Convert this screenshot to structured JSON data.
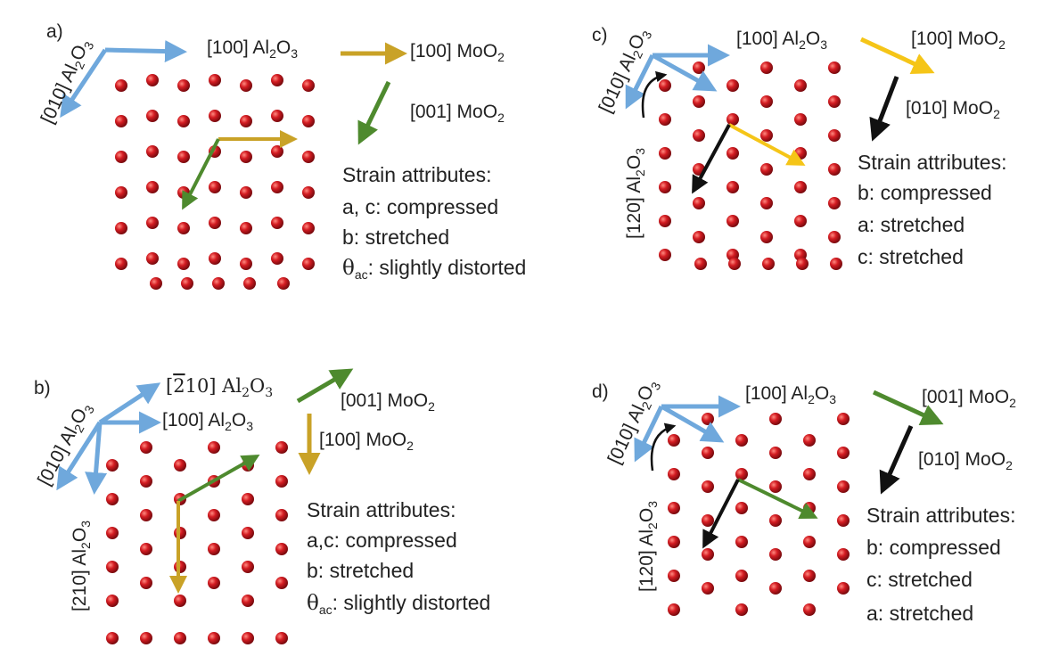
{
  "colors": {
    "al2o3_arrow": "#6fa8dc",
    "moo2_a_arrow": "#c9a227",
    "moo2_c_yellow": "#f5c518",
    "moo2_green": "#4e8a2e",
    "black_arrow": "#111111",
    "atom": "#c8161d"
  },
  "panels": [
    {
      "id": "a",
      "letter": "a)",
      "al_010": "[010] Al2O3",
      "al_100": "[100] Al2O3",
      "moo2_1": "[100] MoO2",
      "moo2_2": "[001] MoO2",
      "strain_title": "Strain attributes:",
      "strain_lines": [
        "a, c: compressed",
        "b: stretched",
        "θac: slightly distorted"
      ]
    },
    {
      "id": "b",
      "letter": "b)",
      "al_010": "[010] Al2O3",
      "al_m210": "[2̄10] Al2O3",
      "al_100": "[100] Al2O3",
      "al_210": "[210] Al2O3",
      "moo2_1": "[001] MoO2",
      "moo2_2": "[100] MoO2",
      "strain_title": "Strain attributes:",
      "strain_lines": [
        "a,c: compressed",
        "b: stretched",
        "θac: slightly distorted"
      ]
    },
    {
      "id": "c",
      "letter": "c)",
      "al_010": "[010] Al2O3",
      "al_100": "[100] Al2O3",
      "al_120": "[120] Al2O3",
      "moo2_1": "[100] MoO2",
      "moo2_2": "[010] MoO2",
      "strain_title": "Strain attributes:",
      "strain_lines": [
        "b: compressed",
        "a: stretched",
        "c: stretched"
      ]
    },
    {
      "id": "d",
      "letter": "d)",
      "al_010": "[010] Al2O3",
      "al_100": "[100] Al2O3",
      "al_120": "[120] Al2O3",
      "moo2_1": "[001] MoO2",
      "moo2_2": "[010] MoO2",
      "strain_title": "Strain attributes:",
      "strain_lines": [
        "b: compressed",
        "c: stretched",
        "a: stretched"
      ]
    }
  ]
}
